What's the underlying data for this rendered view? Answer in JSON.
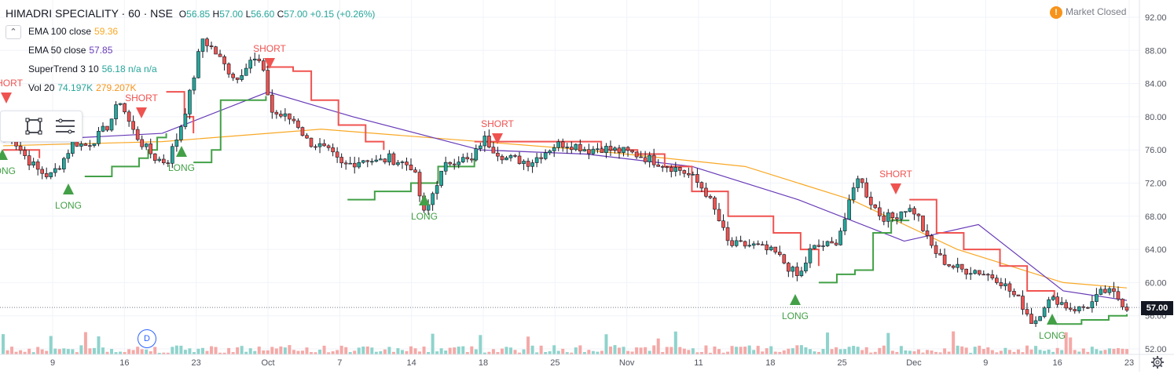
{
  "header": {
    "symbol": "HIMADRI SPECIALITY · 60 · NSE",
    "o_label": "O",
    "o_val": "56.85",
    "h_label": "H",
    "h_val": "57.00",
    "l_label": "L",
    "l_val": "56.60",
    "c_label": "C",
    "c_val": "57.00",
    "change": "+0.15 (+0.26%)"
  },
  "indicators": [
    {
      "label": "EMA 100 close",
      "value": "59.36",
      "color": "#f9a825"
    },
    {
      "label": "EMA 50 close",
      "value": "57.85",
      "color": "#673ab7"
    },
    {
      "label": "SuperTrend 3 10",
      "value": "56.18 n/a n/a",
      "color": "#26a69a"
    },
    {
      "label": "Vol 20",
      "value": "74.197K",
      "value2": "279.207K",
      "color": "#26a69a",
      "color2": "#f7931a"
    }
  ],
  "collapse_icon": "chevron-up-icon",
  "toolbox": {
    "tools": [
      "rectangle-icon",
      "lines-icon"
    ]
  },
  "market_status": {
    "icon": "!",
    "text": "Market Closed"
  },
  "badge": "D",
  "last_price": "57.00",
  "colors": {
    "up": "#26a69a",
    "down": "#ef5350",
    "ema100": "#f9a825",
    "ema50": "#673ab7",
    "supertrend_up": "#43a047",
    "supertrend_down": "#ef5350",
    "signal_long": "#43a047",
    "signal_short": "#ef5350",
    "grid": "#f0f3fa",
    "axis_text": "#50535e"
  },
  "chart_data": {
    "type": "candlestick",
    "y_ticks": [
      "92.00",
      "88.00",
      "84.00",
      "80.00",
      "76.00",
      "72.00",
      "68.00",
      "64.00",
      "60.00",
      "56.00",
      "52.00"
    ],
    "ylim": [
      52,
      92
    ],
    "x_ticks": [
      "9",
      "16",
      "23",
      "Oct",
      "7",
      "14",
      "18",
      "25",
      "Nov",
      "11",
      "18",
      "25",
      "Dec",
      "9",
      "16",
      "23"
    ],
    "close_path": [
      {
        "date": "6",
        "c": 79.5
      },
      {
        "date": "7",
        "c": 77
      },
      {
        "date": "8",
        "c": 75
      },
      {
        "date": "9",
        "c": 73.5
      },
      {
        "date": "10",
        "c": 72.8
      },
      {
        "date": "11",
        "c": 74.5
      },
      {
        "date": "12",
        "c": 77
      },
      {
        "date": "13",
        "c": 76.5
      },
      {
        "date": "15",
        "c": 77.5
      },
      {
        "date": "16",
        "c": 79
      },
      {
        "date": "17",
        "c": 82
      },
      {
        "date": "18",
        "c": 78.5
      },
      {
        "date": "19",
        "c": 76.5
      },
      {
        "date": "20",
        "c": 75
      },
      {
        "date": "21",
        "c": 74.5
      },
      {
        "date": "22",
        "c": 78
      },
      {
        "date": "23",
        "c": 83
      },
      {
        "date": "24",
        "c": 89.5
      },
      {
        "date": "25",
        "c": 88
      },
      {
        "date": "26",
        "c": 86
      },
      {
        "date": "27",
        "c": 84.5
      },
      {
        "date": "28",
        "c": 87
      },
      {
        "date": "29",
        "c": 86.5
      },
      {
        "date": "30",
        "c": 80.5
      },
      {
        "date": "Oct 1",
        "c": 80
      },
      {
        "date": "2",
        "c": 79.5
      },
      {
        "date": "3",
        "c": 77
      },
      {
        "date": "4",
        "c": 76.5
      },
      {
        "date": "5",
        "c": 75.5
      },
      {
        "date": "7",
        "c": 74
      },
      {
        "date": "8",
        "c": 74.5
      },
      {
        "date": "9",
        "c": 75
      },
      {
        "date": "10",
        "c": 74.5
      },
      {
        "date": "11",
        "c": 75
      },
      {
        "date": "12",
        "c": 74.5
      },
      {
        "date": "13",
        "c": 74
      },
      {
        "date": "14",
        "c": 68
      },
      {
        "date": "15",
        "c": 72
      },
      {
        "date": "16",
        "c": 74.5
      },
      {
        "date": "17",
        "c": 75
      },
      {
        "date": "18",
        "c": 74.5
      },
      {
        "date": "19",
        "c": 77.5
      },
      {
        "date": "21",
        "c": 76
      },
      {
        "date": "22",
        "c": 75
      },
      {
        "date": "23",
        "c": 74.8
      },
      {
        "date": "24",
        "c": 74.5
      },
      {
        "date": "25",
        "c": 75.5
      },
      {
        "date": "26",
        "c": 76.5
      },
      {
        "date": "27",
        "c": 76.8
      },
      {
        "date": "28",
        "c": 76.5
      },
      {
        "date": "29",
        "c": 76
      },
      {
        "date": "30",
        "c": 76.3
      },
      {
        "date": "31",
        "c": 76
      },
      {
        "date": "Nov 1",
        "c": 75.8
      },
      {
        "date": "4",
        "c": 75.5
      },
      {
        "date": "5",
        "c": 75
      },
      {
        "date": "6",
        "c": 74.5
      },
      {
        "date": "7",
        "c": 74
      },
      {
        "date": "8",
        "c": 73.5
      },
      {
        "date": "11",
        "c": 72.5
      },
      {
        "date": "12",
        "c": 71
      },
      {
        "date": "13",
        "c": 68
      },
      {
        "date": "14",
        "c": 64.5
      },
      {
        "date": "15",
        "c": 64.5
      },
      {
        "date": "18",
        "c": 64.5
      },
      {
        "date": "19",
        "c": 64
      },
      {
        "date": "20",
        "c": 63.5
      },
      {
        "date": "21",
        "c": 62
      },
      {
        "date": "22",
        "c": 60.5
      },
      {
        "date": "23",
        "c": 64
      },
      {
        "date": "24",
        "c": 64.5
      },
      {
        "date": "25",
        "c": 64.5
      },
      {
        "date": "26",
        "c": 68
      },
      {
        "date": "27",
        "c": 73
      },
      {
        "date": "28",
        "c": 70
      },
      {
        "date": "29",
        "c": 68
      },
      {
        "date": "30",
        "c": 67.8
      },
      {
        "date": "Dec 1",
        "c": 69
      },
      {
        "date": "2",
        "c": 68.5
      },
      {
        "date": "3",
        "c": 65
      },
      {
        "date": "4",
        "c": 63
      },
      {
        "date": "5",
        "c": 62
      },
      {
        "date": "6",
        "c": 61.5
      },
      {
        "date": "9",
        "c": 61.5
      },
      {
        "date": "10",
        "c": 61
      },
      {
        "date": "11",
        "c": 60.5
      },
      {
        "date": "12",
        "c": 59
      },
      {
        "date": "13",
        "c": 57.5
      },
      {
        "date": "14",
        "c": 55
      },
      {
        "date": "16",
        "c": 57.5
      },
      {
        "date": "17",
        "c": 58
      },
      {
        "date": "18",
        "c": 57
      },
      {
        "date": "19",
        "c": 56.8
      },
      {
        "date": "20",
        "c": 57.5
      },
      {
        "date": "21",
        "c": 59
      },
      {
        "date": "22",
        "c": 58.5
      },
      {
        "date": "23",
        "c": 57
      }
    ],
    "ema100": [
      [
        0,
        76.5
      ],
      [
        15,
        77
      ],
      [
        30,
        78.5
      ],
      [
        40,
        77.5
      ],
      [
        55,
        76
      ],
      [
        70,
        74
      ],
      [
        80,
        70
      ],
      [
        90,
        64
      ],
      [
        100,
        60
      ],
      [
        106,
        59.36
      ]
    ],
    "ema50": [
      [
        0,
        77
      ],
      [
        15,
        78
      ],
      [
        25,
        83
      ],
      [
        33,
        80
      ],
      [
        45,
        76
      ],
      [
        55,
        75.5
      ],
      [
        65,
        74
      ],
      [
        75,
        70
      ],
      [
        85,
        65
      ],
      [
        92,
        67
      ],
      [
        100,
        59
      ],
      [
        106,
        57.85
      ]
    ],
    "supertrend_segments": [
      {
        "dir": "down",
        "pts": [
          [
            0,
            76
          ],
          [
            4,
            75
          ]
        ]
      },
      {
        "dir": "up",
        "pts": [
          [
            9,
            72.8
          ],
          [
            12,
            74
          ],
          [
            15,
            75
          ],
          [
            16,
            76
          ],
          [
            17,
            77.5
          ],
          [
            18,
            78
          ]
        ]
      },
      {
        "dir": "down",
        "pts": [
          [
            18,
            83
          ],
          [
            20,
            80
          ],
          [
            21,
            78
          ]
        ]
      },
      {
        "dir": "up",
        "pts": [
          [
            21,
            74.5
          ],
          [
            23,
            76
          ],
          [
            24,
            82
          ],
          [
            28,
            82
          ],
          [
            29,
            82.5
          ]
        ]
      },
      {
        "dir": "down",
        "pts": [
          [
            29,
            86
          ],
          [
            32,
            85.5
          ],
          [
            34,
            82
          ],
          [
            37,
            79
          ],
          [
            40,
            77
          ],
          [
            42,
            76
          ]
        ]
      },
      {
        "dir": "up",
        "pts": [
          [
            38,
            70
          ],
          [
            41,
            71
          ],
          [
            45,
            72
          ],
          [
            48,
            74
          ],
          [
            52,
            75
          ]
        ]
      },
      {
        "dir": "down",
        "pts": [
          [
            52,
            77
          ],
          [
            60,
            77
          ],
          [
            66,
            76
          ],
          [
            70,
            75.5
          ],
          [
            73,
            74
          ],
          [
            76,
            71
          ],
          [
            80,
            68
          ],
          [
            85,
            66
          ],
          [
            88,
            64
          ],
          [
            90,
            62
          ]
        ]
      },
      {
        "dir": "up",
        "pts": [
          [
            90,
            60
          ],
          [
            92,
            61
          ],
          [
            94,
            61.5
          ],
          [
            96,
            66
          ],
          [
            98,
            67.5
          ],
          [
            100,
            67.5
          ]
        ]
      },
      {
        "dir": "down",
        "pts": [
          [
            100,
            70
          ],
          [
            103,
            66
          ],
          [
            106,
            64
          ],
          [
            110,
            62
          ],
          [
            113,
            59
          ],
          [
            116,
            58
          ]
        ]
      },
      {
        "dir": "up",
        "pts": [
          [
            116,
            55
          ],
          [
            119,
            55.5
          ],
          [
            122,
            56
          ],
          [
            124,
            56.2
          ]
        ]
      }
    ],
    "signals": [
      {
        "type": "SHORT",
        "date": "Sep 5"
      },
      {
        "type": "LONG",
        "date": "Sep 5"
      },
      {
        "type": "LONG",
        "date": "Sep 10"
      },
      {
        "type": "SHORT",
        "date": "Sep 17"
      },
      {
        "type": "LONG",
        "date": "Sep 20"
      },
      {
        "type": "SHORT",
        "date": "Sep 27"
      },
      {
        "type": "LONG",
        "date": "Oct 15"
      },
      {
        "type": "SHORT",
        "date": "Oct 22"
      },
      {
        "type": "LONG",
        "date": "Nov 23"
      },
      {
        "type": "SHORT",
        "date": "Nov 30"
      },
      {
        "type": "LONG",
        "date": "Dec 16"
      }
    ]
  }
}
